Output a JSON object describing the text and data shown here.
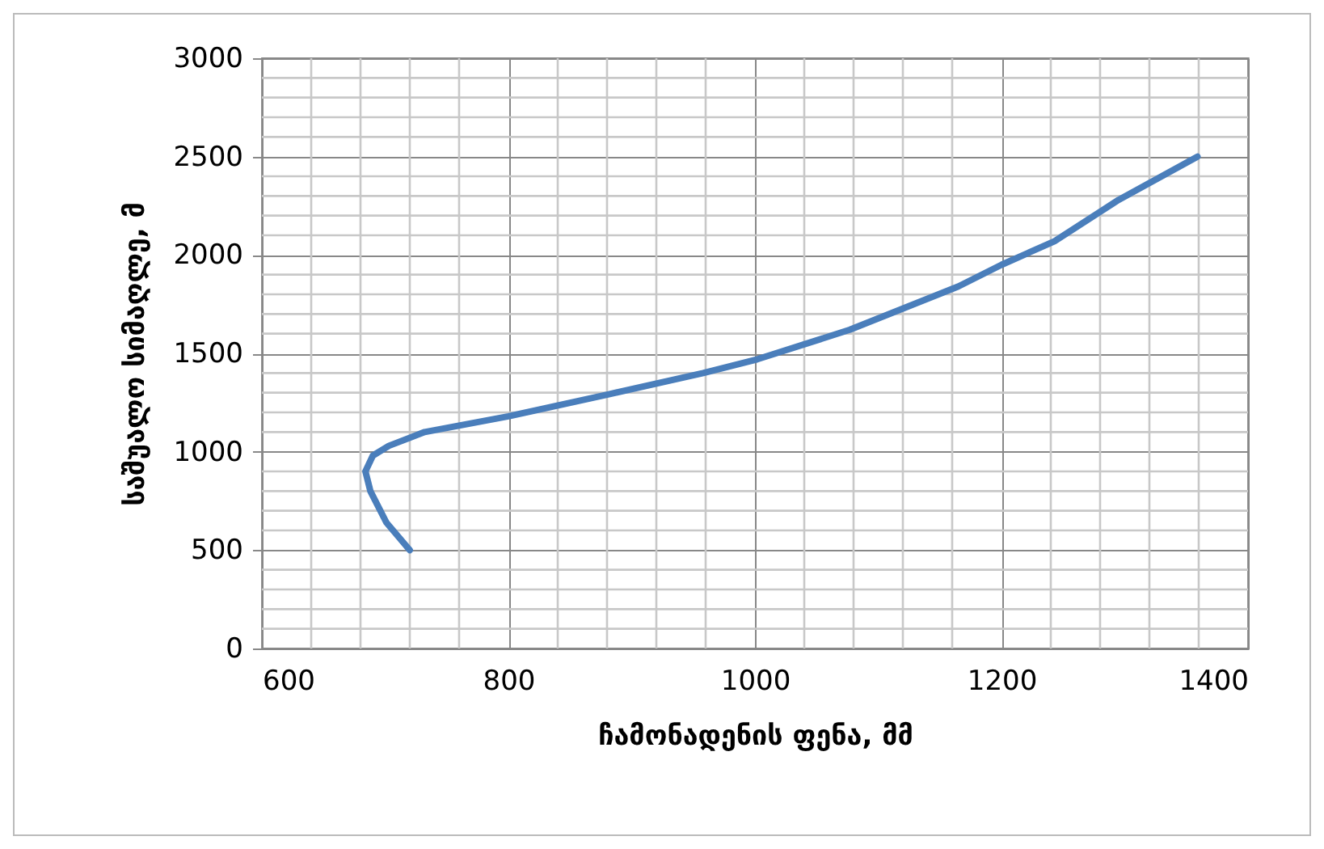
{
  "chart_data": {
    "type": "line",
    "xlabel": "ჩამონადენის ფენა, მმ",
    "ylabel": "საშუალო სიმაღლე, მ",
    "x": [
      720,
      701,
      688,
      684,
      690,
      703,
      732,
      800,
      880,
      958,
      1002,
      1077,
      1165,
      1200,
      1243,
      1295,
      1359
    ],
    "series": [
      {
        "color": "#4a7ebb",
        "values": [
          500,
          640,
          800,
          900,
          980,
          1030,
          1100,
          1180,
          1290,
          1400,
          1470,
          1620,
          1840,
          1950,
          2070,
          2280,
          2500
        ]
      }
    ],
    "xlim": [
      600,
      1400
    ],
    "xticks": [
      600,
      800,
      1000,
      1200,
      1400
    ],
    "ylim": [
      0,
      3000
    ],
    "yticks": [
      0,
      500,
      1000,
      1500,
      2000,
      2500,
      3000
    ],
    "grid": true,
    "legend": false,
    "marker": "none",
    "line_style": "solid"
  }
}
